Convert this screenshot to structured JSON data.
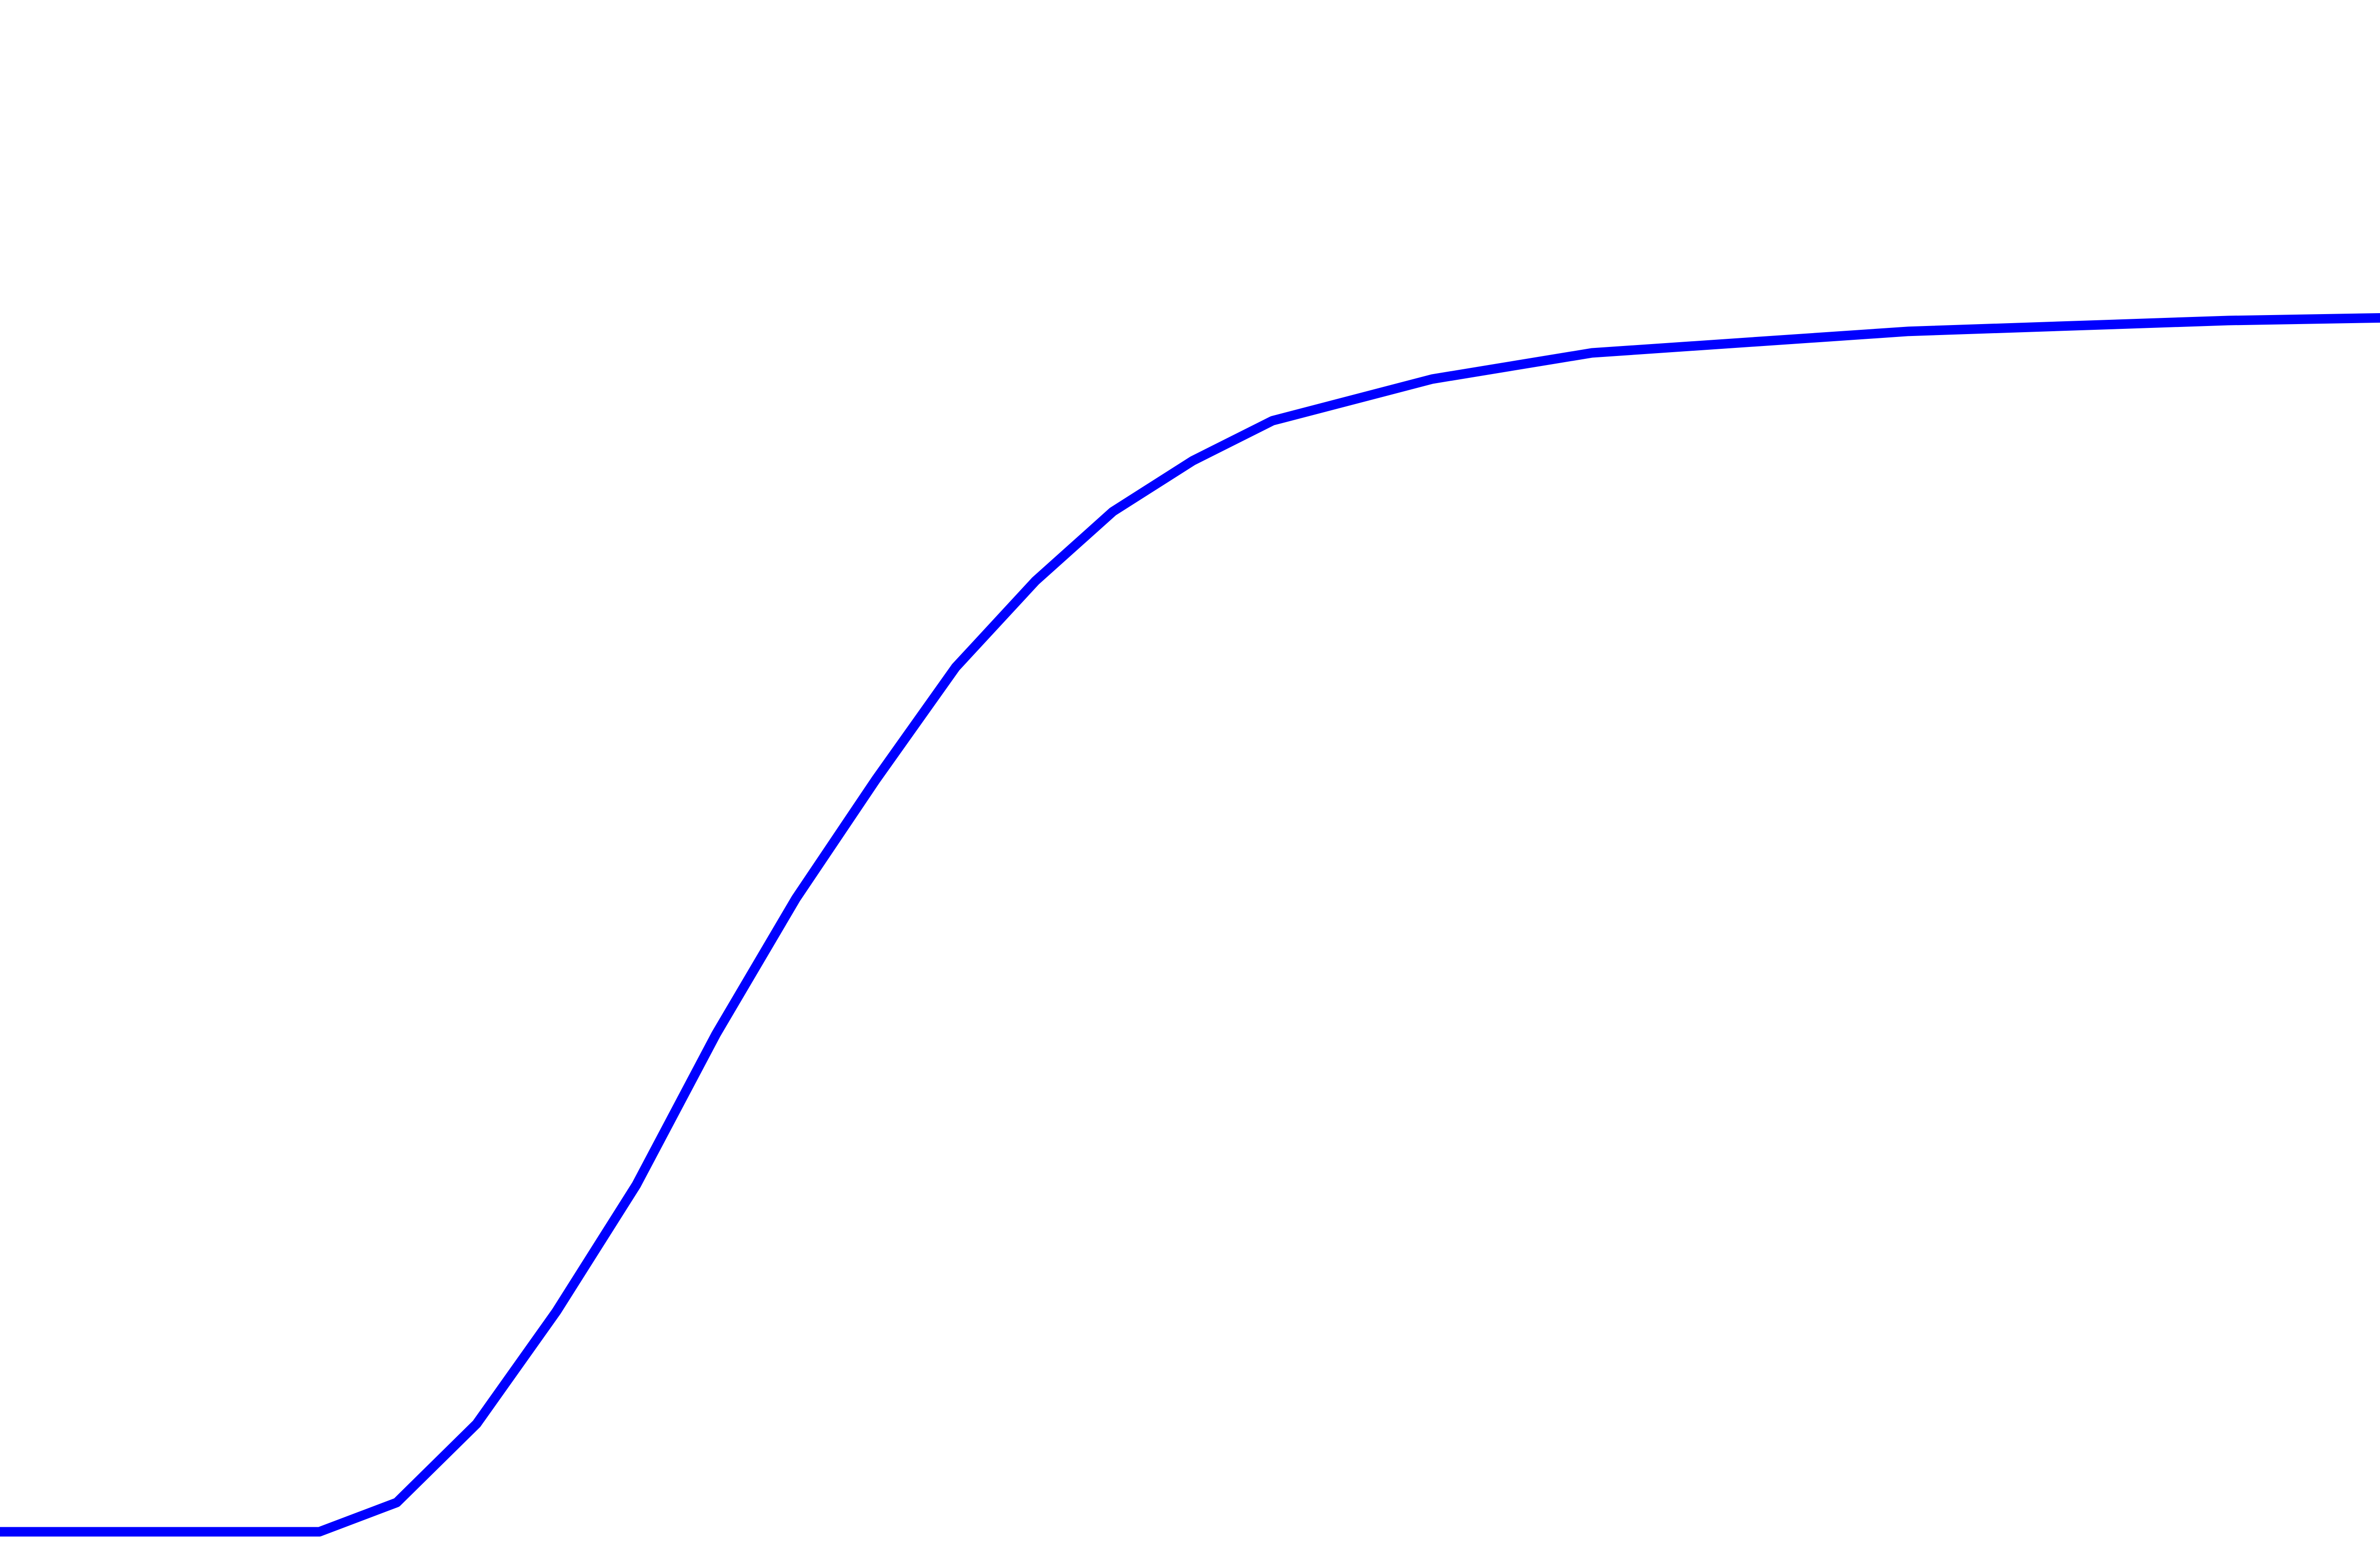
{
  "chart_data": {
    "type": "line",
    "x": [
      0,
      0.128,
      0.159,
      0.191,
      0.223,
      0.255,
      0.287,
      0.319,
      0.351,
      0.383,
      0.415,
      0.446,
      0.478,
      0.51,
      0.574,
      0.638,
      0.765,
      0.893,
      1
    ],
    "series": [
      {
        "color": "#0000ff",
        "values": [
          0.006,
          0.006,
          0.025,
          0.076,
          0.149,
          0.231,
          0.329,
          0.417,
          0.494,
          0.567,
          0.623,
          0.668,
          0.701,
          0.727,
          0.754,
          0.771,
          0.785,
          0.792,
          0.795
        ]
      }
    ],
    "xlim": [
      0,
      1
    ],
    "ylim": [
      0,
      1
    ]
  }
}
